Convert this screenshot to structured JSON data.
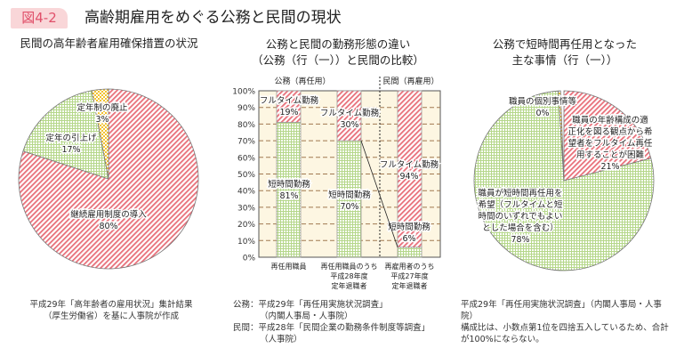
{
  "header": {
    "badge": "図4-2",
    "title": "高齢期雇用をめぐる公務と民間の現状"
  },
  "colors": {
    "hatch_red": "#e8707a",
    "dot_green": "#9cc85a",
    "check_yellow": "#f2c230",
    "plot_bg": "#fdf6e2",
    "badge_bg": "#f9d6d8",
    "badge_text": "#e0506a"
  },
  "chart_data": [
    {
      "type": "pie",
      "title": "民間の高年齢者雇用確保措置の状況",
      "slices": [
        {
          "label": "継続雇用制度の導入",
          "value": 80,
          "display": "80%",
          "pattern": "hatch-red"
        },
        {
          "label": "定年の引上げ",
          "value": 17,
          "display": "17%",
          "pattern": "dot-green"
        },
        {
          "label": "定年制の廃止",
          "value": 3,
          "display": "3%",
          "pattern": "check-yellow"
        }
      ],
      "source": [
        "平成29年「高年齢者の雇用状況」集計結果",
        "（厚生労働省）を基に人事院が作成"
      ]
    },
    {
      "type": "bar",
      "stacked": true,
      "title": [
        "公務と民間の勤務形態の違い",
        "（公務（行（一））と民間の比較）"
      ],
      "groups": [
        {
          "label": "公務（再任用）"
        },
        {
          "label": "民間（再雇用）"
        }
      ],
      "categories": [
        [
          "再任用職員"
        ],
        [
          "再任用職員のうち",
          "平成28年度",
          "定年退職者"
        ],
        [
          "再雇用者のうち",
          "平成27年度",
          "定年退職者"
        ]
      ],
      "series": [
        {
          "name": "短時間勤務",
          "values": [
            81,
            70,
            6
          ],
          "labels": [
            "81%",
            "70%",
            "6%"
          ],
          "pattern": "dot-green"
        },
        {
          "name": "フルタイム勤務",
          "values": [
            19,
            30,
            94
          ],
          "labels": [
            "19%",
            "30%",
            "94%"
          ],
          "pattern": "hatch-red"
        }
      ],
      "ylim": [
        0,
        100
      ],
      "yticks": [
        "0%",
        "10%",
        "20%",
        "30%",
        "40%",
        "50%",
        "60%",
        "70%",
        "80%",
        "90%",
        "100%"
      ],
      "grid": true,
      "source": [
        "公務：平成29年「再任用実施状況調査」",
        "（内閣人事局・人事院）",
        "民間：平成28年「民間企業の勤務条件制度等調査」",
        "（人事院）"
      ]
    },
    {
      "type": "pie",
      "title": [
        "公務で短時間再任用となった",
        "主な事情（行（一））"
      ],
      "slices": [
        {
          "label": [
            "職員の年齢構成の適",
            "正化を図る観点から希",
            "望者をフルタイム再任",
            "用することが困難"
          ],
          "value": 21,
          "display": "21%",
          "pattern": "hatch-red"
        },
        {
          "label": [
            "職員が短時間再任用を",
            "希望（フルタイムと短",
            "時間のいずれでもよい",
            "とした場合を含む）"
          ],
          "value": 78,
          "display": "78%",
          "pattern": "dot-green"
        },
        {
          "label": [
            "職員の個別事情等"
          ],
          "value": 0.4,
          "display": "0%",
          "pattern": "check-yellow"
        }
      ],
      "source": [
        "平成29年「再任用実施状況調査」（内閣人事局・人事院）",
        "構成比は、小数点第1位を四捨五入しているため、合計",
        "が100%にならない。"
      ]
    }
  ]
}
